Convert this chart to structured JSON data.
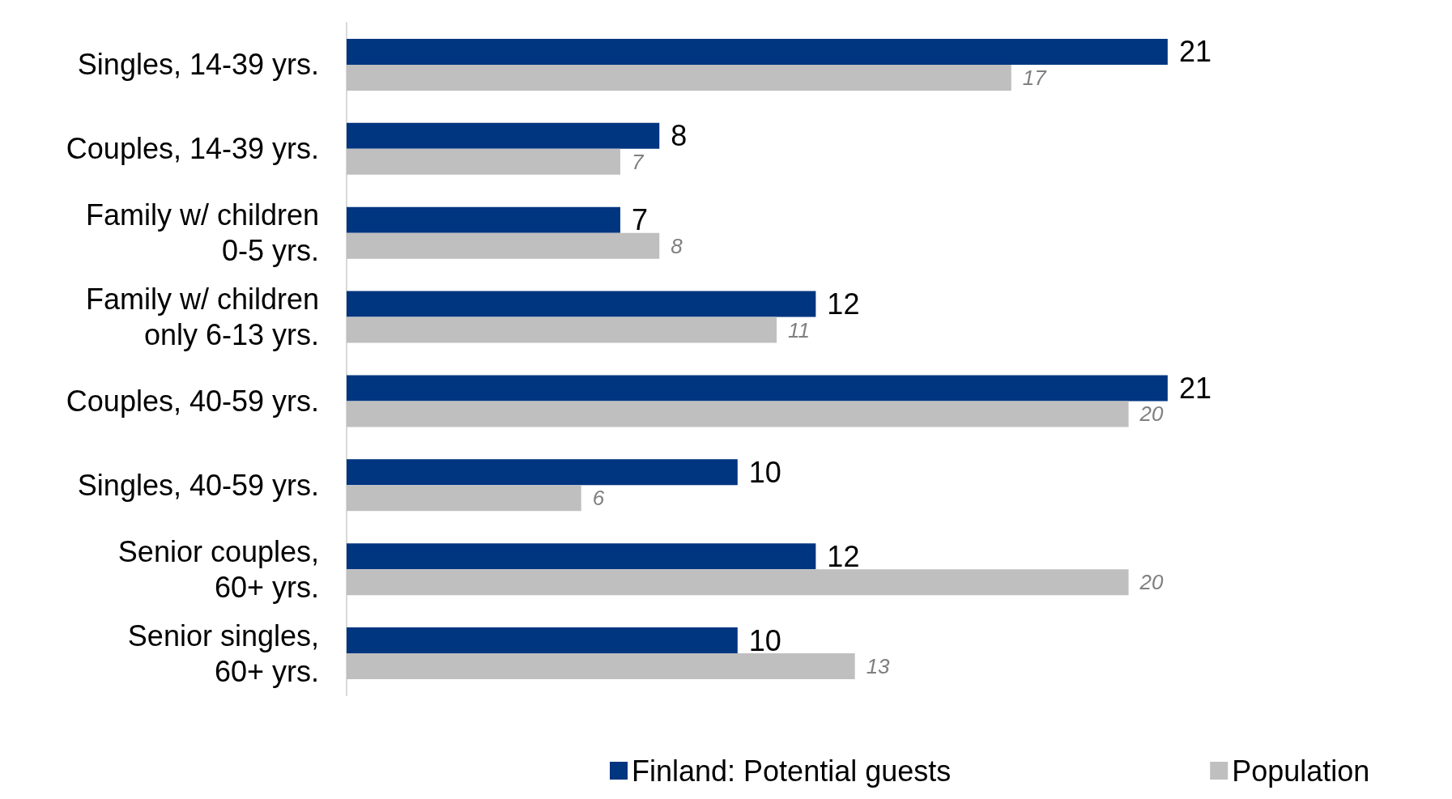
{
  "chart_data": {
    "type": "bar",
    "orientation": "horizontal",
    "categories": [
      "Singles, 14-39 yrs.",
      "Couples, 14-39 yrs.",
      "Family w/ children\n0-5 yrs.",
      "Family w/ children\nonly 6-13 yrs.",
      "Couples, 40-59 yrs.",
      "Singles, 40-59 yrs.",
      "Senior couples,\n60+ yrs.",
      "Senior singles,\n60+ yrs."
    ],
    "series": [
      {
        "name": "Finland: Potential guests",
        "color": "#003580",
        "values": [
          21,
          8,
          7,
          12,
          21,
          10,
          12,
          10
        ]
      },
      {
        "name": "Population",
        "color": "#bfbfbf",
        "values": [
          17,
          7,
          8,
          11,
          20,
          6,
          20,
          13
        ]
      }
    ],
    "data_labels": true,
    "legend": "bottom"
  }
}
